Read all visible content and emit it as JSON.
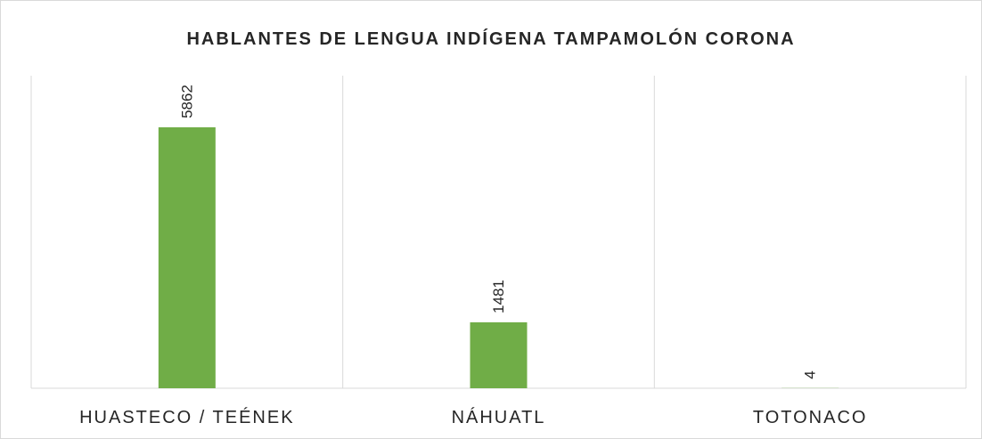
{
  "chart_data": {
    "type": "bar",
    "title": "HABLANTES DE LENGUA INDÍGENA TAMPAMOLÓN CORONA",
    "categories": [
      "HUASTECO / TEÉNEK",
      "NÁHUATL",
      "TOTONACO"
    ],
    "values": [
      5862,
      1481,
      4
    ],
    "color": "#70ad47"
  }
}
